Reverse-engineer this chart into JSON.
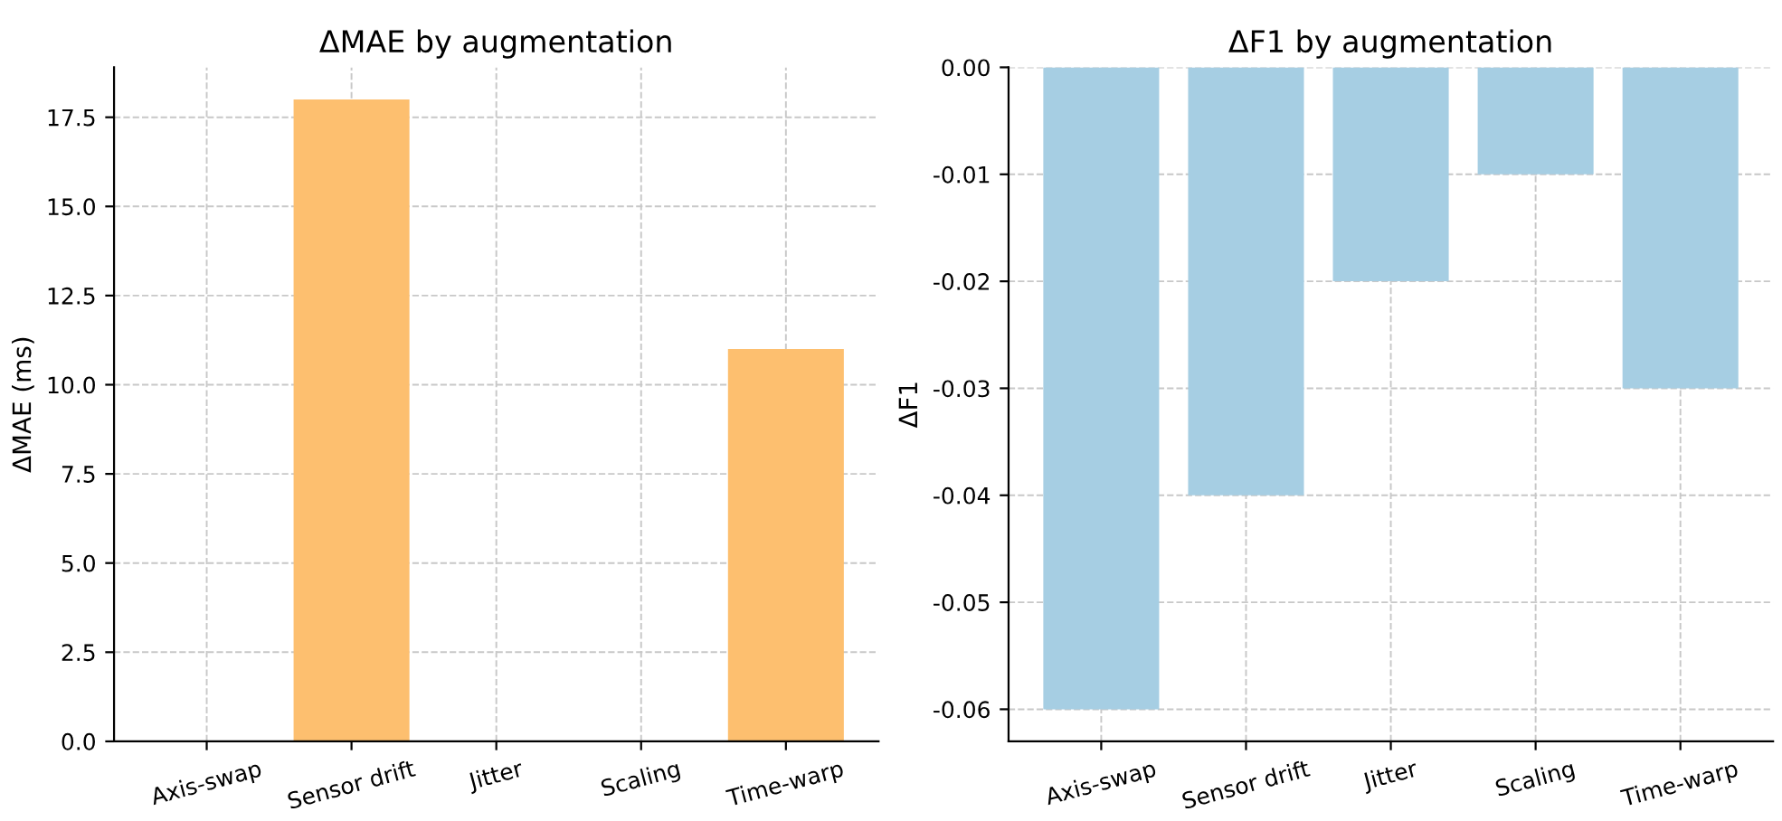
{
  "chart_data": [
    {
      "type": "bar",
      "title": "ΔMAE by augmentation",
      "ylabel": "ΔMAE (ms)",
      "categories": [
        "Axis-swap",
        "Sensor drift",
        "Jitter",
        "Scaling",
        "Time-warp"
      ],
      "values": [
        0,
        18,
        0,
        0,
        11
      ],
      "color": "#fdbf6f",
      "ylim": [
        0,
        18.9
      ],
      "yticks": [
        {
          "value": 0,
          "label": "0.0"
        },
        {
          "value": 2.5,
          "label": "2.5"
        },
        {
          "value": 5,
          "label": "5.0"
        },
        {
          "value": 7.5,
          "label": "7.5"
        },
        {
          "value": 10,
          "label": "10.0"
        },
        {
          "value": 12.5,
          "label": "12.5"
        },
        {
          "value": 15,
          "label": "15.0"
        },
        {
          "value": 17.5,
          "label": "17.5"
        }
      ],
      "grid": true
    },
    {
      "type": "bar",
      "title": "ΔF1 by augmentation",
      "ylabel": "ΔF1",
      "categories": [
        "Axis-swap",
        "Sensor drift",
        "Jitter",
        "Scaling",
        "Time-warp"
      ],
      "values": [
        -0.06,
        -0.04,
        -0.02,
        -0.01,
        -0.03
      ],
      "color": "#a6cee3",
      "ylim": [
        -0.063,
        0
      ],
      "yticks": [
        {
          "value": -0.06,
          "label": "-0.06"
        },
        {
          "value": -0.05,
          "label": "-0.05"
        },
        {
          "value": -0.04,
          "label": "-0.04"
        },
        {
          "value": -0.03,
          "label": "-0.03"
        },
        {
          "value": -0.02,
          "label": "-0.02"
        },
        {
          "value": -0.01,
          "label": "-0.01"
        },
        {
          "value": 0,
          "label": "0.00"
        }
      ],
      "grid": true
    }
  ]
}
